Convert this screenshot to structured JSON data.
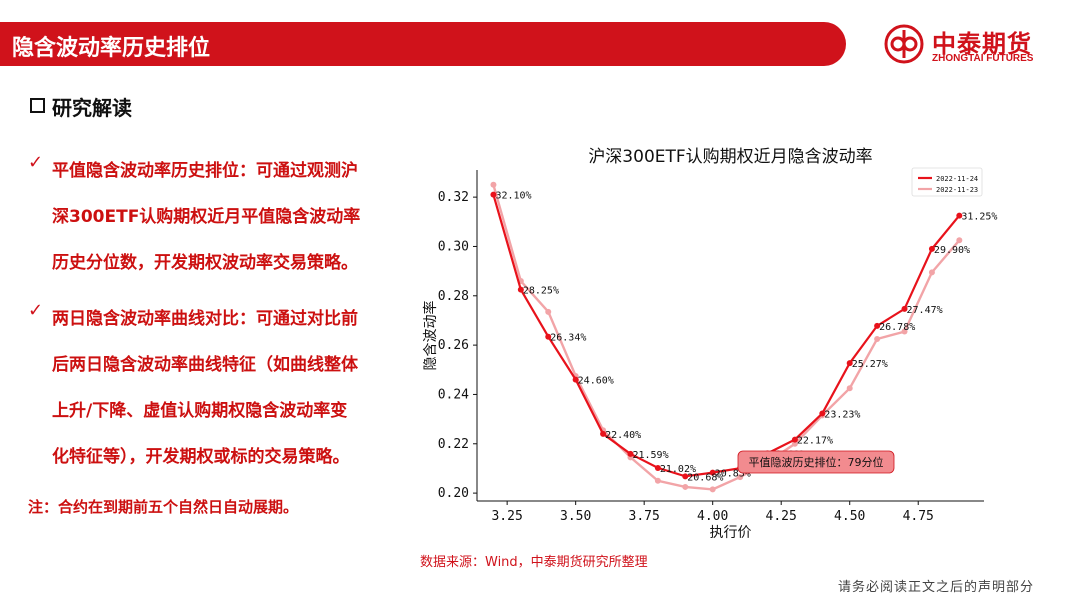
{
  "header": {
    "title": "隐含波动率历史排位",
    "logo_cn": "中泰期货",
    "logo_en": "ZHONGTAI FUTURES",
    "brand_color": "#d0121b"
  },
  "section": {
    "title": "研究解读"
  },
  "bullets": [
    {
      "icon": "check-icon",
      "lines": [
        "平值隐含波动率历史排位：可通过观测沪",
        "深300ETF认购期权近月平值隐含波动率",
        "历史分位数，开发期权波动率交易策略。"
      ]
    },
    {
      "icon": "check-icon",
      "lines": [
        "两日隐含波动率曲线对比：可通过对比前",
        "后两日隐含波动率曲线特征（如曲线整体",
        "上升/下降、虚值认购期权隐含波动率变",
        "化特征等），开发期权或标的交易策略。"
      ]
    }
  ],
  "note": "注：合约在到期前五个自然日自动展期。",
  "source": "数据来源：Wind，中泰期货研究所整理",
  "footer": "请务必阅读正文之后的声明部分",
  "chart_data": {
    "type": "line",
    "title": "沪深300ETF认购期权近月隐含波动率",
    "xlabel": "执行价",
    "ylabel": "隐含波动率",
    "xlim": [
      3.14,
      4.99
    ],
    "ylim": [
      0.1968,
      0.331
    ],
    "xticks": [
      3.25,
      3.5,
      3.75,
      4.0,
      4.25,
      4.5,
      4.75
    ],
    "xtick_labels": [
      "3.25",
      "3.50",
      "3.75",
      "4.00",
      "4.25",
      "4.50",
      "4.75"
    ],
    "yticks": [
      0.2,
      0.22,
      0.24,
      0.26,
      0.28,
      0.3,
      0.32
    ],
    "ytick_labels": [
      "0.20",
      "0.22",
      "0.24",
      "0.26",
      "0.28",
      "0.30",
      "0.32"
    ],
    "legend_position": "top-right",
    "series": [
      {
        "name": "2022-11-24",
        "color": "#e8121b",
        "x": [
          3.2,
          3.3,
          3.4,
          3.5,
          3.6,
          3.7,
          3.8,
          3.9,
          4.0,
          4.1,
          4.2,
          4.3,
          4.4,
          4.5,
          4.6,
          4.7,
          4.8,
          4.9
        ],
        "y": [
          0.321,
          0.2825,
          0.2634,
          0.246,
          0.224,
          0.2159,
          0.2102,
          0.2068,
          0.2083,
          0.2101,
          0.2161,
          0.2217,
          0.2323,
          0.2527,
          0.2678,
          0.2747,
          0.299,
          0.3125
        ],
        "labels": [
          "32.10%",
          "28.25%",
          "26.34%",
          "24.60%",
          "22.40%",
          "21.59%",
          "21.02%",
          "20.68%",
          "20.83%",
          "",
          "21.61%",
          "22.17%",
          "23.23%",
          "25.27%",
          "26.78%",
          "27.47%",
          "29.90%",
          "31.25%"
        ]
      },
      {
        "name": "2022-11-23",
        "color": "#f2a4a7",
        "x": [
          3.2,
          3.3,
          3.4,
          3.5,
          3.6,
          3.7,
          3.8,
          3.9,
          4.0,
          4.1,
          4.2,
          4.3,
          4.4,
          4.5,
          4.6,
          4.7,
          4.8,
          4.9
        ],
        "y": [
          0.325,
          0.286,
          0.2735,
          0.2475,
          0.2255,
          0.2145,
          0.205,
          0.2025,
          0.2015,
          0.2065,
          0.2125,
          0.22,
          0.2315,
          0.2425,
          0.2625,
          0.2655,
          0.2895,
          0.3025
        ]
      }
    ],
    "annotation": "平值隐波历史排位：79分位"
  }
}
